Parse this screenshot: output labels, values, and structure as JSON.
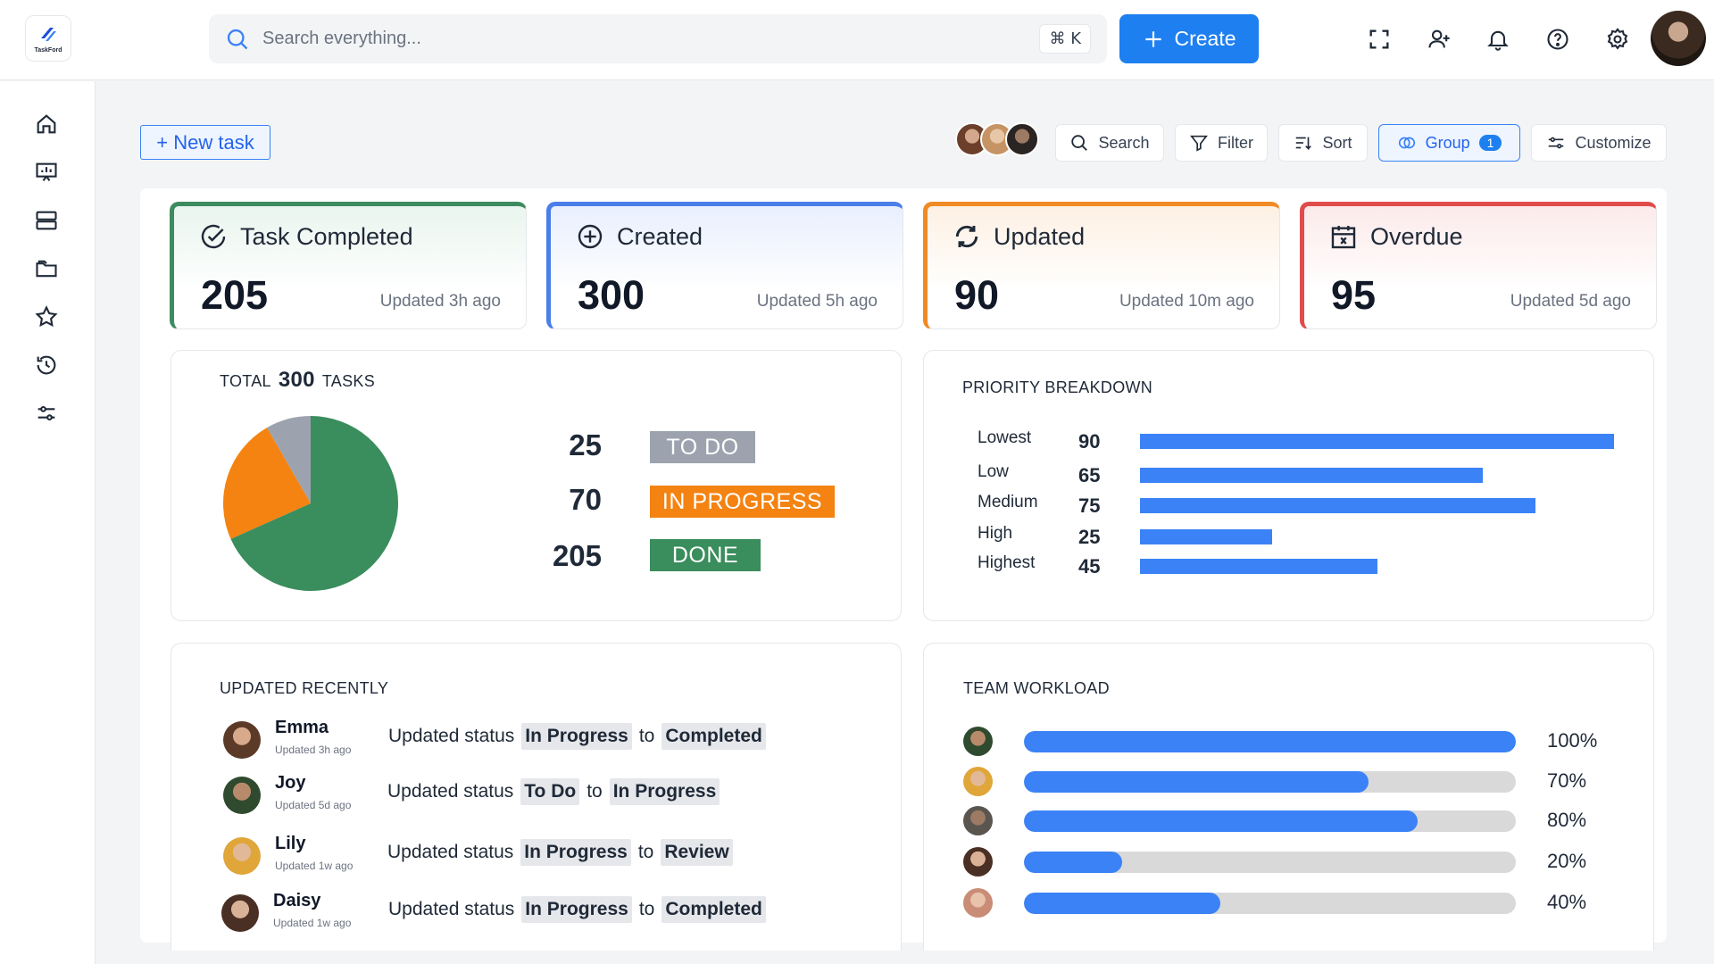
{
  "app": {
    "logo_text": "TaskFord"
  },
  "search": {
    "placeholder": "Search everything...",
    "shortcut": "⌘ K"
  },
  "header": {
    "create_label": "Create"
  },
  "toolbar": {
    "new_task_label": "+ New task",
    "search_label": "Search",
    "filter_label": "Filter",
    "sort_label": "Sort",
    "group_label": "Group",
    "group_count": "1",
    "customize_label": "Customize"
  },
  "kpis": [
    {
      "title": "Task Completed",
      "value": "205",
      "updated": "Updated 3h ago",
      "color": "#3d8b5f"
    },
    {
      "title": "Created",
      "value": "300",
      "updated": "Updated 5h ago",
      "color": "#4a7ee8"
    },
    {
      "title": "Updated",
      "value": "90",
      "updated": "Updated 10m ago",
      "color": "#f08a24"
    },
    {
      "title": "Overdue",
      "value": "95",
      "updated": "Updated 5d ago",
      "color": "#e04b4b"
    }
  ],
  "total_tasks": {
    "prefix": "TOTAL",
    "count": "300",
    "suffix": "TASKS",
    "items": [
      {
        "value": "25",
        "label": "TO DO",
        "color": "#9ca3af"
      },
      {
        "value": "70",
        "label": "IN PROGRESS",
        "color": "#f48312"
      },
      {
        "value": "205",
        "label": "DONE",
        "color": "#3a8d5c"
      }
    ]
  },
  "priority": {
    "title": "PRIORITY BREAKDOWN",
    "rows": [
      {
        "label": "Lowest",
        "value": "90"
      },
      {
        "label": "Low",
        "value": "65"
      },
      {
        "label": "Medium",
        "value": "75"
      },
      {
        "label": "High",
        "value": "25"
      },
      {
        "label": "Highest",
        "value": "45"
      }
    ]
  },
  "recent": {
    "title": "UPDATED RECENTLY",
    "rows": [
      {
        "name": "Emma",
        "time": "Updated 3h ago",
        "text": "Updated status",
        "from": "In Progress",
        "to_word": "to",
        "to": "Completed"
      },
      {
        "name": "Joy",
        "time": "Updated 5d ago",
        "text": "Updated status",
        "from": "To Do",
        "to_word": "to",
        "to": "In Progress"
      },
      {
        "name": "Lily",
        "time": "Updated 1w ago",
        "text": "Updated status",
        "from": "In Progress",
        "to_word": "to",
        "to": "Review"
      },
      {
        "name": "Daisy",
        "time": "Updated 1w ago",
        "text": "Updated status",
        "from": "In Progress",
        "to_word": "to",
        "to": "Completed"
      }
    ]
  },
  "workload": {
    "title": "TEAM WORKLOAD",
    "rows": [
      {
        "percent": 100,
        "label": "100%"
      },
      {
        "percent": 70,
        "label": "70%"
      },
      {
        "percent": 80,
        "label": "80%"
      },
      {
        "percent": 20,
        "label": "20%"
      },
      {
        "percent": 40,
        "label": "40%"
      }
    ]
  }
}
